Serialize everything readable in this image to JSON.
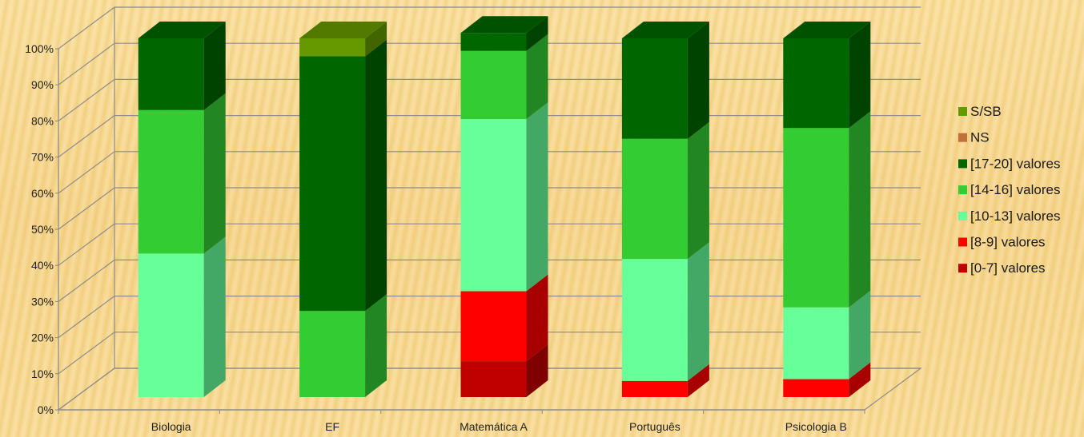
{
  "chart_data": {
    "type": "bar",
    "stacked": true,
    "three_d": true,
    "title": "",
    "xlabel": "",
    "ylabel": "",
    "ylim": [
      0,
      100
    ],
    "yticks": [
      "0%",
      "10%",
      "20%",
      "30%",
      "40%",
      "50%",
      "60%",
      "70%",
      "80%",
      "90%",
      "100%"
    ],
    "categories": [
      "Biologia",
      "EF",
      "Matemática A",
      "Português",
      "Psicologia B"
    ],
    "legend_position": "right",
    "grid": true,
    "series": [
      {
        "name": "[0-7] valores",
        "color": "#c00000",
        "values": [
          0,
          0,
          10,
          0,
          0
        ]
      },
      {
        "name": "[8-9] valores",
        "color": "#ff0000",
        "values": [
          0,
          0,
          19.5,
          4.5,
          5
        ]
      },
      {
        "name": "[10-13] valores",
        "color": "#66ff99",
        "values": [
          40,
          0,
          48,
          34,
          20
        ]
      },
      {
        "name": "[14-16] valores",
        "color": "#33cc33",
        "values": [
          40,
          24,
          19,
          33.5,
          50
        ]
      },
      {
        "name": "[17-20] valores",
        "color": "#006600",
        "values": [
          20,
          71,
          5,
          28,
          25
        ]
      },
      {
        "name": "NS",
        "color": "#c0703a",
        "values": [
          0,
          0,
          0,
          0,
          0
        ]
      },
      {
        "name": "S/SB",
        "color": "#669900",
        "values": [
          0,
          5,
          0,
          0,
          0
        ]
      }
    ],
    "legend_order": [
      "S/SB",
      "NS",
      "[17-20] valores",
      "[14-16] valores",
      "[10-13] valores",
      "[8-9] valores",
      "[0-7] valores"
    ]
  }
}
